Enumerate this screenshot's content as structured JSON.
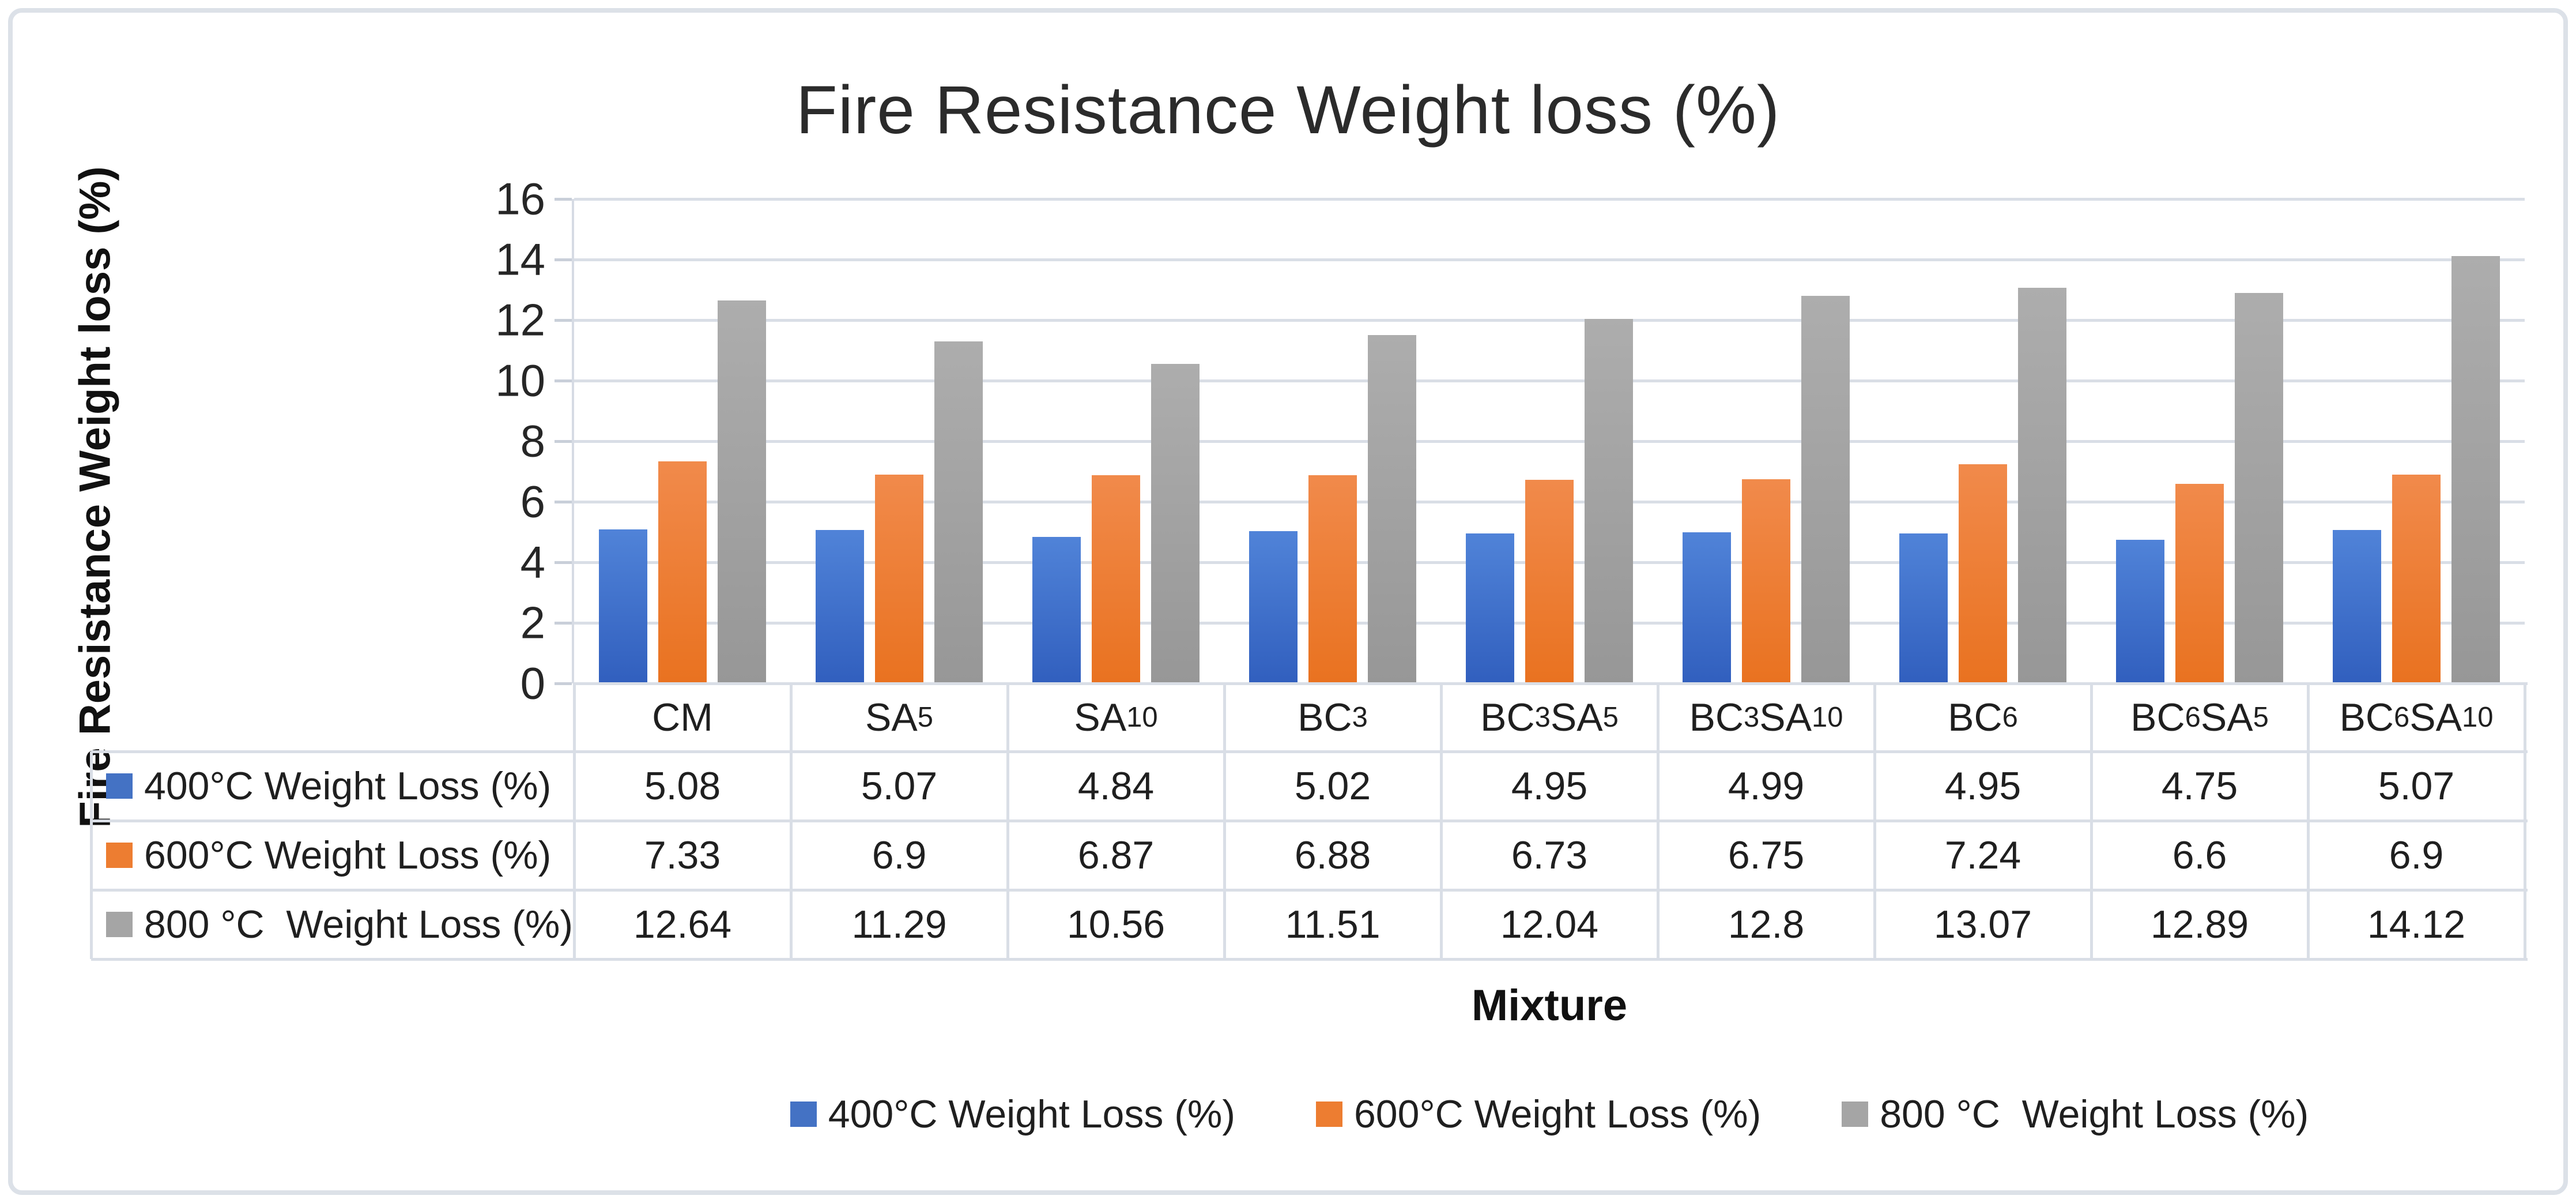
{
  "frame": {
    "border_color": "#dce1e8",
    "grid_color": "#d9dee6"
  },
  "chart_data": {
    "type": "bar",
    "title": "Fire Resistance Weight loss (%)",
    "xlabel": "Mixture",
    "ylabel": "Fire Resistance Weight loss (%)",
    "ylim": [
      0,
      16
    ],
    "ytick_step": 2,
    "grid": true,
    "legend_position": "bottom",
    "show_data_table": true,
    "categories": [
      "CM",
      "SA5",
      "SA10",
      "BC3",
      "BC3SA5",
      "BC3SA10",
      "BC6",
      "BC6SA5",
      "BC6SA10"
    ],
    "categories_rich": [
      [
        [
          "CM",
          false
        ]
      ],
      [
        [
          "SA",
          false
        ],
        [
          "5",
          true
        ]
      ],
      [
        [
          "SA",
          false
        ],
        [
          "10",
          true
        ]
      ],
      [
        [
          "BC",
          false
        ],
        [
          "3",
          true
        ]
      ],
      [
        [
          "BC",
          false
        ],
        [
          "3",
          true
        ],
        [
          "SA",
          false
        ],
        [
          "5",
          true
        ]
      ],
      [
        [
          "BC",
          false
        ],
        [
          "3",
          true
        ],
        [
          "SA",
          false
        ],
        [
          "10",
          true
        ]
      ],
      [
        [
          "BC",
          false
        ],
        [
          "6",
          true
        ]
      ],
      [
        [
          "BC",
          false
        ],
        [
          "6",
          true
        ],
        [
          "SA",
          false
        ],
        [
          "5",
          true
        ]
      ],
      [
        [
          "BC",
          false
        ],
        [
          "6",
          true
        ],
        [
          "SA",
          false
        ],
        [
          "10",
          true
        ]
      ]
    ],
    "series": [
      {
        "name": "400°C Weight Loss (%)",
        "color": "#4472C4",
        "gradient": [
          "#5083d8",
          "#315fbe"
        ],
        "values": [
          5.08,
          5.07,
          4.84,
          5.02,
          4.95,
          4.99,
          4.95,
          4.75,
          5.07
        ]
      },
      {
        "name": "600°C Weight Loss (%)",
        "color": "#ED7D31",
        "gradient": [
          "#f18a4b",
          "#e97220"
        ],
        "values": [
          7.33,
          6.9,
          6.87,
          6.88,
          6.73,
          6.75,
          7.24,
          6.6,
          6.9
        ]
      },
      {
        "name": "800 °C  Weight Loss (%)",
        "color": "#A5A5A5",
        "gradient": [
          "#adadad",
          "#979797"
        ],
        "values": [
          12.64,
          11.29,
          10.56,
          11.51,
          12.04,
          12.8,
          13.07,
          12.89,
          14.12
        ]
      }
    ]
  }
}
